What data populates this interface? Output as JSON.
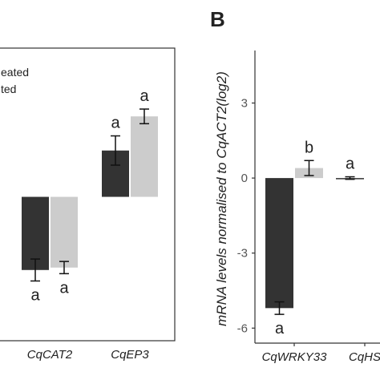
{
  "figure": {
    "panel_b_letter": "B",
    "legend": [
      "eated",
      "ted"
    ]
  },
  "chart_data": [
    {
      "type": "bar",
      "panel": "A (cropped)",
      "categories": [
        "CqCAT2",
        "CqEP3"
      ],
      "series": [
        {
          "name": "",
          "color": "#333333",
          "values": [
            -3.0,
            1.9
          ],
          "errors": [
            0.45,
            0.6
          ]
        },
        {
          "name": "",
          "color": "#cccccc",
          "values": [
            -2.9,
            3.3
          ],
          "errors": [
            0.25,
            0.3
          ]
        }
      ],
      "letters": [
        [
          "a",
          "a"
        ],
        [
          "a",
          "a"
        ]
      ],
      "xlabel": "",
      "ylabel": "",
      "ylim": [
        -5.9,
        6.1
      ],
      "legend_position": "top-left",
      "grid": false
    },
    {
      "type": "bar",
      "panel": "B",
      "categories": [
        "CqWRKY33",
        "CqHS"
      ],
      "series": [
        {
          "name": "",
          "color": "#333333",
          "values": [
            -5.2,
            0.0
          ],
          "errors": [
            0.25,
            0.05
          ]
        },
        {
          "name": "",
          "color": "#cccccc",
          "values": [
            0.4,
            null
          ],
          "errors": [
            0.3,
            null
          ]
        }
      ],
      "letters": [
        [
          "a",
          "a"
        ],
        [
          "b",
          ""
        ]
      ],
      "xlabel": "",
      "ylabel": "mRNA levels normalised to CqACT2(log2)",
      "yticks": [
        "3",
        "0",
        "-3",
        "-6"
      ],
      "ytick_values": [
        3,
        0,
        -3,
        -6
      ],
      "ylim": [
        -6.6,
        5.1
      ],
      "grid": false
    }
  ]
}
